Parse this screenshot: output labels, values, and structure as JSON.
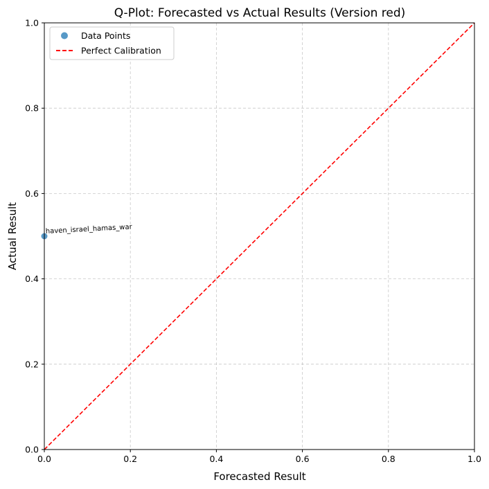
{
  "chart_data": {
    "type": "scatter",
    "title": "Q-Plot: Forecasted vs Actual Results (Version red)",
    "xlabel": "Forecasted Result",
    "ylabel": "Actual Result",
    "xlim": [
      0,
      1
    ],
    "ylim": [
      0,
      1
    ],
    "xticks": [
      0,
      0.2,
      0.4,
      0.6,
      0.8,
      1.0
    ],
    "yticks": [
      0,
      0.2,
      0.4,
      0.6,
      0.8,
      1.0
    ],
    "xtick_labels": [
      "0.0",
      "0.2",
      "0.4",
      "0.6",
      "0.8",
      "1.0"
    ],
    "ytick_labels": [
      "0.0",
      "0.2",
      "0.4",
      "0.6",
      "0.8",
      "1.0"
    ],
    "grid": true,
    "legend_position": "top-left",
    "series": [
      {
        "name": "Data Points",
        "kind": "scatter",
        "color": "#1f77b4",
        "points": [
          {
            "x": 0.0,
            "y": 0.5,
            "label": "haven_israel_hamas_war"
          }
        ]
      },
      {
        "name": "Perfect Calibration",
        "kind": "line",
        "style": "dashed",
        "color": "#ff0000",
        "points": [
          {
            "x": 0,
            "y": 0
          },
          {
            "x": 1,
            "y": 1
          }
        ]
      }
    ]
  }
}
